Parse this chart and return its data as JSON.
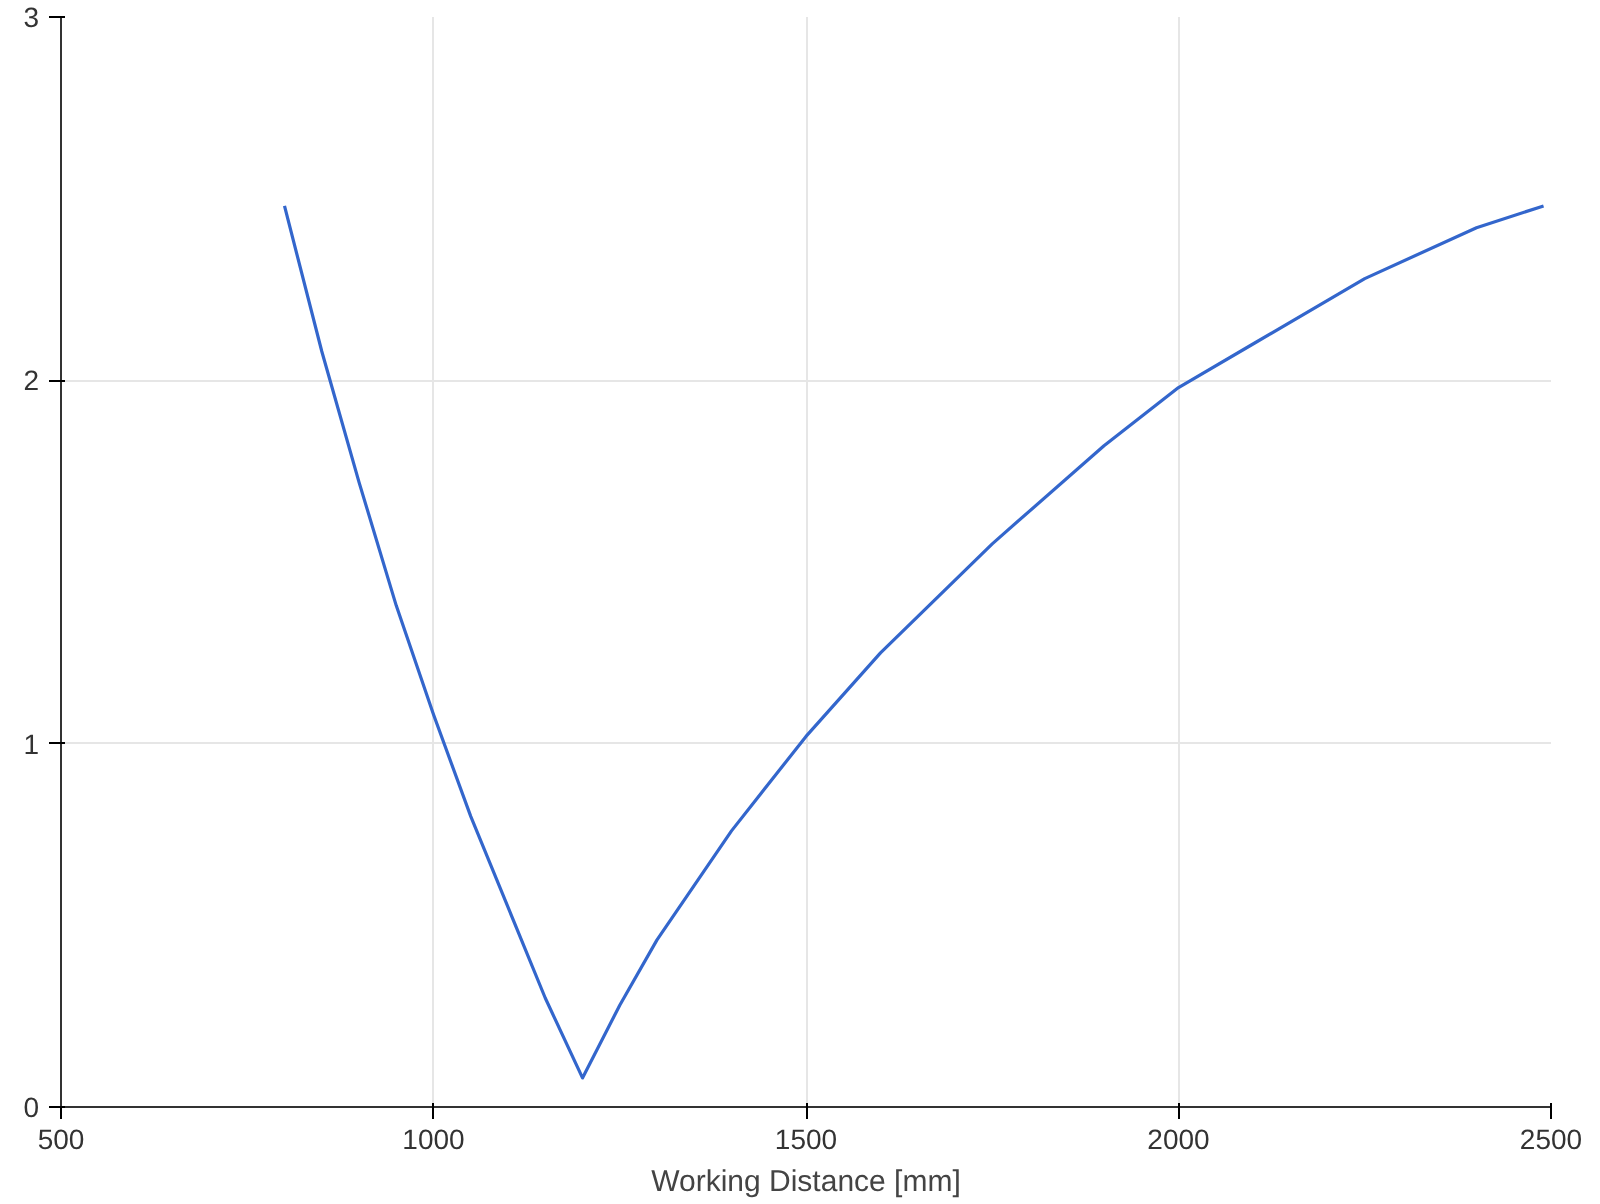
{
  "chart_data": {
    "type": "line",
    "xlabel": "Working Distance [mm]",
    "series": [
      {
        "color": "#3366cc",
        "x": [
          800,
          850,
          900,
          950,
          1000,
          1050,
          1100,
          1150,
          1200,
          1250,
          1300,
          1400,
          1500,
          1600,
          1750,
          1900,
          2000,
          2100,
          2250,
          2400,
          2490
        ],
        "values": [
          2.48,
          2.08,
          1.72,
          1.38,
          1.08,
          0.8,
          0.55,
          0.3,
          0.08,
          0.28,
          0.46,
          0.76,
          1.02,
          1.25,
          1.55,
          1.82,
          1.98,
          2.1,
          2.28,
          2.42,
          2.48
        ]
      }
    ],
    "xlim": [
      500,
      2500
    ],
    "ylim": [
      0,
      3
    ],
    "xticks": [
      500,
      1000,
      1500,
      2000,
      2500
    ],
    "yticks": [
      0,
      1,
      2,
      3
    ],
    "grid": true,
    "marker": "none",
    "line_style": "solid"
  }
}
